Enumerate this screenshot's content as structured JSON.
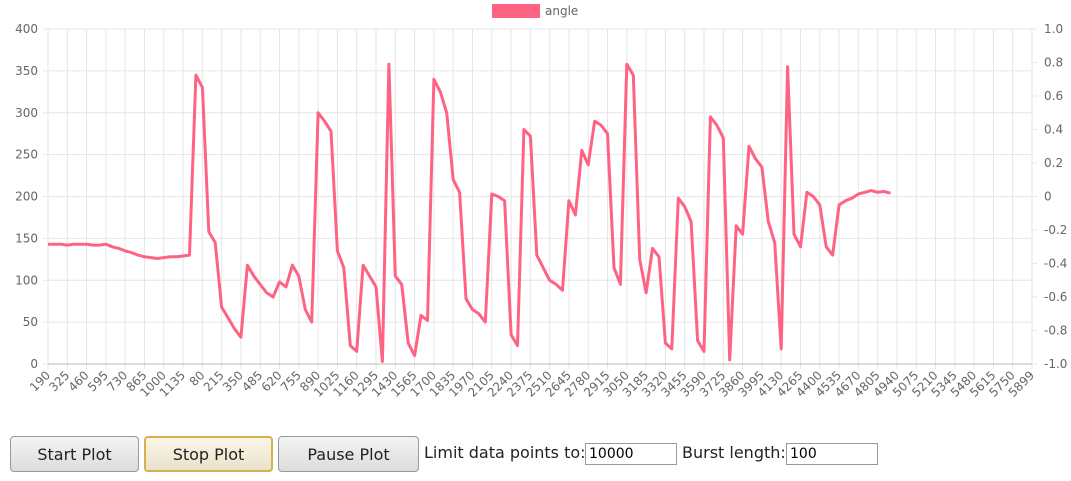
{
  "chart_data": {
    "type": "line",
    "categories": [
      "190",
      null,
      null,
      "325",
      null,
      null,
      "460",
      null,
      null,
      "595",
      null,
      null,
      "730",
      null,
      null,
      "865",
      null,
      null,
      "1000",
      null,
      null,
      "1135",
      null,
      null,
      "80",
      null,
      null,
      "215",
      null,
      null,
      "350",
      null,
      null,
      "485",
      null,
      null,
      "620",
      null,
      null,
      "755",
      null,
      null,
      "890",
      null,
      null,
      "1025",
      null,
      null,
      "1160",
      null,
      null,
      "1295",
      null,
      null,
      "1430",
      null,
      null,
      "1565",
      null,
      null,
      "1700",
      null,
      null,
      "1835",
      null,
      null,
      "1970",
      null,
      null,
      "2105",
      null,
      null,
      "2240",
      null,
      null,
      "2375",
      null,
      null,
      "2510",
      null,
      null,
      "2645",
      null,
      null,
      "2780",
      null,
      null,
      "2915",
      null,
      null,
      "3050",
      null,
      null,
      "3185",
      null,
      null,
      "3320",
      null,
      null,
      "3455",
      null,
      null,
      "3590",
      null,
      null,
      "3725",
      null,
      null,
      "3860",
      null,
      null,
      "3995",
      null,
      null,
      "4130",
      null,
      null,
      "4265",
      null,
      null,
      "4400",
      null,
      null,
      "4535",
      null,
      null,
      "4670",
      null,
      null,
      "4805",
      null,
      null,
      "4940",
      null,
      null,
      "5075",
      null,
      null,
      "5210",
      null,
      null,
      "5345",
      null,
      null,
      "5480",
      null,
      null,
      "5615",
      null,
      null,
      "5750",
      null,
      null,
      "5899"
    ],
    "series": [
      {
        "name": "angle",
        "color": "#ff6384",
        "values": [
          143,
          143,
          143,
          142,
          143,
          143,
          143,
          142,
          142,
          143,
          140,
          138,
          135,
          133,
          130,
          128,
          127,
          126,
          127,
          128,
          128,
          129,
          130,
          345,
          330,
          158,
          145,
          68,
          55,
          42,
          32,
          118,
          105,
          95,
          85,
          80,
          98,
          92,
          118,
          105,
          65,
          50,
          300,
          290,
          278,
          135,
          115,
          22,
          15,
          118,
          105,
          92,
          3,
          358,
          105,
          95,
          25,
          10,
          58,
          52,
          340,
          325,
          300,
          220,
          205,
          78,
          65,
          60,
          50,
          203,
          200,
          195,
          35,
          22,
          280,
          272,
          130,
          115,
          100,
          95,
          88,
          195,
          178,
          255,
          238,
          290,
          285,
          275,
          115,
          95,
          358,
          345,
          125,
          85,
          138,
          128,
          25,
          18,
          198,
          188,
          170,
          28,
          15,
          295,
          285,
          270,
          5,
          165,
          155,
          260,
          245,
          235,
          170,
          145,
          18,
          355,
          155,
          140,
          205,
          200,
          190,
          140,
          130,
          190,
          195,
          198,
          203,
          205,
          207,
          205,
          206,
          204,
          null,
          null,
          null,
          null,
          null,
          null,
          null,
          null,
          null,
          null,
          null,
          null,
          null,
          null,
          null,
          null,
          null,
          null,
          null,
          null,
          null,
          null
        ]
      }
    ],
    "ylim": [
      0,
      400
    ],
    "yticks": [
      0,
      50,
      100,
      150,
      200,
      250,
      300,
      350,
      400
    ],
    "y2lim": [
      -1,
      1
    ],
    "y2ticks": [
      {
        "value": -1,
        "label": "-1.0"
      },
      -0.8,
      -0.6,
      -0.4,
      -0.2,
      0,
      0.2,
      0.4,
      0.6,
      0.8,
      {
        "value": 1,
        "label": "1.0"
      }
    ],
    "grid": true,
    "legend": "top"
  },
  "controls": {
    "start": "Start Plot",
    "stop": "Stop Plot",
    "pause": "Pause Plot",
    "limit_label": "Limit data points to:",
    "limit_value": "10000",
    "burst_label": "Burst length:",
    "burst_value": "100"
  }
}
